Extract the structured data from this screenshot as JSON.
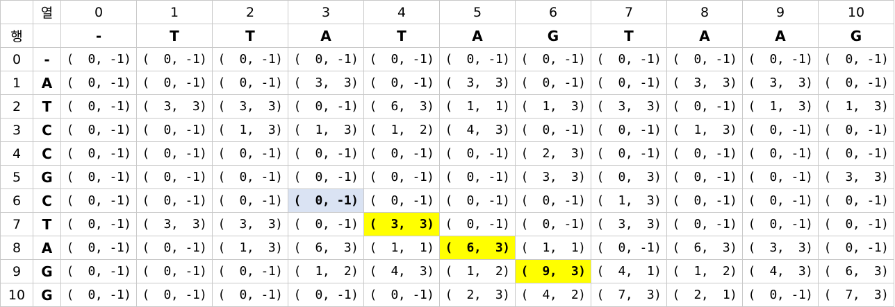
{
  "corner": {
    "row_header_label": "열",
    "col_header_label": "행"
  },
  "colors": {
    "highlight_yellow": "#ffff00",
    "highlight_blue": "#dae3f3",
    "grid_line": "#c8c8c8"
  },
  "column_indices": [
    "0",
    "1",
    "2",
    "3",
    "4",
    "5",
    "6",
    "7",
    "8",
    "9",
    "10"
  ],
  "column_letters": [
    "-",
    "T",
    "T",
    "A",
    "T",
    "A",
    "G",
    "T",
    "A",
    "A",
    "G"
  ],
  "rows": [
    {
      "index": "0",
      "letter": "-",
      "cells": [
        "(  0, -1)",
        "(  0, -1)",
        "(  0, -1)",
        "(  0, -1)",
        "(  0, -1)",
        "(  0, -1)",
        "(  0, -1)",
        "(  0, -1)",
        "(  0, -1)",
        "(  0, -1)",
        "(  0, -1)"
      ]
    },
    {
      "index": "1",
      "letter": "A",
      "cells": [
        "(  0, -1)",
        "(  0, -1)",
        "(  0, -1)",
        "(  3,  3)",
        "(  0, -1)",
        "(  3,  3)",
        "(  0, -1)",
        "(  0, -1)",
        "(  3,  3)",
        "(  3,  3)",
        "(  0, -1)"
      ]
    },
    {
      "index": "2",
      "letter": "T",
      "cells": [
        "(  0, -1)",
        "(  3,  3)",
        "(  3,  3)",
        "(  0, -1)",
        "(  6,  3)",
        "(  1,  1)",
        "(  1,  3)",
        "(  3,  3)",
        "(  0, -1)",
        "(  1,  3)",
        "(  1,  3)"
      ]
    },
    {
      "index": "3",
      "letter": "C",
      "cells": [
        "(  0, -1)",
        "(  0, -1)",
        "(  1,  3)",
        "(  1,  3)",
        "(  1,  2)",
        "(  4,  3)",
        "(  0, -1)",
        "(  0, -1)",
        "(  1,  3)",
        "(  0, -1)",
        "(  0, -1)"
      ]
    },
    {
      "index": "4",
      "letter": "C",
      "cells": [
        "(  0, -1)",
        "(  0, -1)",
        "(  0, -1)",
        "(  0, -1)",
        "(  0, -1)",
        "(  0, -1)",
        "(  2,  3)",
        "(  0, -1)",
        "(  0, -1)",
        "(  0, -1)",
        "(  0, -1)"
      ]
    },
    {
      "index": "5",
      "letter": "G",
      "cells": [
        "(  0, -1)",
        "(  0, -1)",
        "(  0, -1)",
        "(  0, -1)",
        "(  0, -1)",
        "(  0, -1)",
        "(  3,  3)",
        "(  0,  3)",
        "(  0, -1)",
        "(  0, -1)",
        "(  3,  3)"
      ]
    },
    {
      "index": "6",
      "letter": "C",
      "cells": [
        "(  0, -1)",
        "(  0, -1)",
        "(  0, -1)",
        "(  0, -1)",
        "(  0, -1)",
        "(  0, -1)",
        "(  0, -1)",
        "(  1,  3)",
        "(  0, -1)",
        "(  0, -1)",
        "(  0, -1)"
      ]
    },
    {
      "index": "7",
      "letter": "T",
      "cells": [
        "(  0, -1)",
        "(  3,  3)",
        "(  3,  3)",
        "(  0, -1)",
        "(  3,  3)",
        "(  0, -1)",
        "(  0, -1)",
        "(  3,  3)",
        "(  0, -1)",
        "(  0, -1)",
        "(  0, -1)"
      ]
    },
    {
      "index": "8",
      "letter": "A",
      "cells": [
        "(  0, -1)",
        "(  0, -1)",
        "(  1,  3)",
        "(  6,  3)",
        "(  1,  1)",
        "(  6,  3)",
        "(  1,  1)",
        "(  0, -1)",
        "(  6,  3)",
        "(  3,  3)",
        "(  0, -1)"
      ]
    },
    {
      "index": "9",
      "letter": "G",
      "cells": [
        "(  0, -1)",
        "(  0, -1)",
        "(  0, -1)",
        "(  1,  2)",
        "(  4,  3)",
        "(  1,  2)",
        "(  9,  3)",
        "(  4,  1)",
        "(  1,  2)",
        "(  4,  3)",
        "(  6,  3)"
      ]
    },
    {
      "index": "10",
      "letter": "G",
      "cells": [
        "(  0, -1)",
        "(  0, -1)",
        "(  0, -1)",
        "(  0, -1)",
        "(  0, -1)",
        "(  2,  3)",
        "(  4,  2)",
        "(  7,  3)",
        "(  2,  1)",
        "(  0, -1)",
        "(  7,  3)"
      ]
    }
  ],
  "highlights": [
    {
      "row": 6,
      "col": 3,
      "style": "blue"
    },
    {
      "row": 7,
      "col": 4,
      "style": "yellow"
    },
    {
      "row": 8,
      "col": 5,
      "style": "yellow"
    },
    {
      "row": 9,
      "col": 6,
      "style": "yellow"
    }
  ]
}
